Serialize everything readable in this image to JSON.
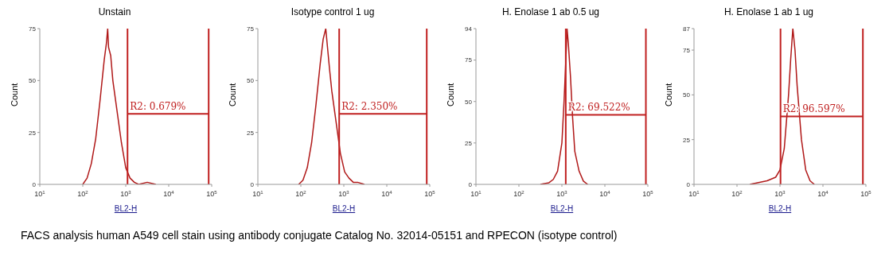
{
  "chart_data": [
    {
      "type": "line",
      "title": "Unstain",
      "xlabel": "BL2-H",
      "ylabel": "Count",
      "log": "x",
      "marker": "none",
      "line_style": "solid",
      "xlim": [
        10,
        100000
      ],
      "xticks": [
        {
          "value": 10,
          "label": "10$^{1}$"
        },
        {
          "value": 100,
          "label": "10$^{2}$"
        },
        {
          "value": 1000,
          "label": "10$^{3}$"
        },
        {
          "value": 10000,
          "label": "10$^{4}$"
        },
        {
          "value": 100000,
          "label": "10$^{5}$"
        }
      ],
      "ylim": [
        0,
        75
      ],
      "yticks": [
        0,
        25,
        50,
        75
      ],
      "series": [
        {
          "color": "#b01818",
          "x": [
            100,
            126,
            158,
            200,
            251,
            316,
            355,
            380,
            398,
            447,
            501,
            631,
            794,
            1000,
            1259,
            1585,
            1995,
            3162,
            5012
          ],
          "values": [
            0,
            3,
            10,
            22,
            40,
            60,
            68,
            75,
            66,
            62,
            50,
            35,
            20,
            8,
            3,
            1,
            0,
            1,
            0
          ]
        }
      ],
      "ref_lines": [
        {
          "axis": "x",
          "value": 1100,
          "color": "#c02020"
        },
        {
          "axis": "x",
          "value": 85000,
          "color": "#c02020"
        },
        {
          "axis": "y",
          "value": 34,
          "color": "#c02020"
        }
      ],
      "annotations": [
        {
          "text": "R2: 0.679%",
          "x": 1100,
          "y": 34
        },
        "FACS analysis human A549 cell stain using antibody conjugate Catalog No. 32014-05151 and RPECON (isotype control)"
      ]
    },
    {
      "type": "line",
      "title": "Isotype control 1 ug",
      "xlabel": "BL2-H",
      "ylabel": "Count",
      "log": "x",
      "marker": "none",
      "line_style": "solid",
      "xlim": [
        10,
        100000
      ],
      "xticks": [
        {
          "value": 10,
          "label": "10$^{1}$"
        },
        {
          "value": 100,
          "label": "10$^{2}$"
        },
        {
          "value": 1000,
          "label": "10$^{3}$"
        },
        {
          "value": 10000,
          "label": "10$^{4}$"
        },
        {
          "value": 100000,
          "label": "10$^{5}$"
        }
      ],
      "ylim": [
        0,
        75
      ],
      "yticks": [
        0,
        25,
        50,
        75
      ],
      "series": [
        {
          "color": "#b01818",
          "x": [
            89,
            112,
            141,
            178,
            224,
            282,
            331,
            380,
            417,
            468,
            525,
            661,
            832,
            1047,
            1318,
            1660,
            2089,
            3020
          ],
          "values": [
            0,
            2,
            8,
            20,
            38,
            58,
            70,
            75,
            66,
            55,
            45,
            30,
            15,
            6,
            3,
            1,
            1,
            0
          ]
        }
      ],
      "ref_lines": [
        {
          "axis": "x",
          "value": 780,
          "color": "#c02020"
        },
        {
          "axis": "x",
          "value": 85000,
          "color": "#c02020"
        },
        {
          "axis": "y",
          "value": 34,
          "color": "#c02020"
        }
      ],
      "annotations": [
        {
          "text": "R2: 2.350%",
          "x": 780,
          "y": 34
        }
      ]
    },
    {
      "type": "line",
      "title": "H. Enolase 1 ab 0.5 ug",
      "xlabel": "BL2-H",
      "ylabel": "Count",
      "log": "x",
      "marker": "none",
      "line_style": "solid",
      "xlim": [
        10,
        100000
      ],
      "xticks": [
        {
          "value": 10,
          "label": "10$^{1}$"
        },
        {
          "value": 100,
          "label": "10$^{2}$"
        },
        {
          "value": 1000,
          "label": "10$^{3}$"
        },
        {
          "value": 10000,
          "label": "10$^{4}$"
        },
        {
          "value": 100000,
          "label": "10$^{5}$"
        }
      ],
      "ylim": [
        0,
        94
      ],
      "yticks": [
        0,
        25,
        50,
        75,
        94
      ],
      "series": [
        {
          "color": "#b01818",
          "x": [
            316,
            501,
            631,
            794,
            1000,
            1122,
            1259,
            1318,
            1413,
            1585,
            1778,
            1995,
            2512,
            3162,
            3981
          ],
          "values": [
            0,
            1,
            3,
            8,
            25,
            50,
            80,
            94,
            85,
            65,
            40,
            20,
            8,
            2,
            0
          ]
        }
      ],
      "ref_lines": [
        {
          "axis": "x",
          "value": 1230,
          "color": "#c02020"
        },
        {
          "axis": "x",
          "value": 90000,
          "color": "#c02020"
        },
        {
          "axis": "y",
          "value": 42,
          "color": "#c02020"
        }
      ],
      "annotations": [
        {
          "text": "R2: 69.522%",
          "x": 1230,
          "y": 42
        }
      ]
    },
    {
      "type": "line",
      "title": "H. Enolase 1 ab 1 ug",
      "xlabel": "BL2-H",
      "ylabel": "Count",
      "log": "x",
      "marker": "none",
      "line_style": "solid",
      "xlim": [
        10,
        100000
      ],
      "xticks": [
        {
          "value": 10,
          "label": "10$^{1}$"
        },
        {
          "value": 100,
          "label": "10$^{2}$"
        },
        {
          "value": 1000,
          "label": "10$^{3}$"
        },
        {
          "value": 10000,
          "label": "10$^{4}$"
        },
        {
          "value": 100000,
          "label": "10$^{5}$"
        }
      ],
      "ylim": [
        0,
        87
      ],
      "yticks": [
        0,
        25,
        50,
        75,
        87
      ],
      "series": [
        {
          "color": "#b01818",
          "x": [
            200,
            316,
            501,
            794,
            1000,
            1259,
            1585,
            1778,
            1995,
            2239,
            2512,
            3162,
            3981,
            5012,
            6310
          ],
          "values": [
            0,
            1,
            2,
            4,
            8,
            20,
            50,
            70,
            87,
            75,
            55,
            25,
            8,
            2,
            0
          ]
        }
      ],
      "ref_lines": [
        {
          "axis": "x",
          "value": 1030,
          "color": "#c02020"
        },
        {
          "axis": "x",
          "value": 85000,
          "color": "#c02020"
        },
        {
          "axis": "y",
          "value": 38,
          "color": "#c02020"
        }
      ],
      "annotations": [
        {
          "text": "R2: 96.597%",
          "x": 1030,
          "y": 38
        }
      ]
    }
  ]
}
